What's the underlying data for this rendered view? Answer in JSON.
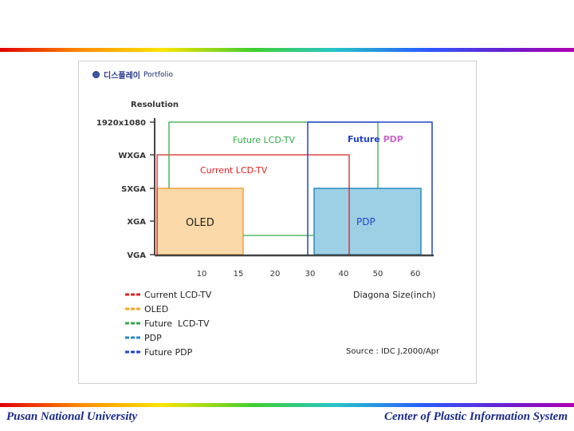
{
  "header": {
    "title_kr": "디스플레이",
    "title_en": "Portfolio"
  },
  "chart_data": {
    "type": "diagram",
    "ylabel": "Resolution",
    "xlabel": "Diagona Size(inch)",
    "y_levels": [
      "1920x1080",
      "WXGA",
      "SXGA",
      "XGA",
      "VGA"
    ],
    "x_ticks": [
      10,
      15,
      20,
      30,
      40,
      50,
      60
    ],
    "regions": [
      {
        "name": "Current LCD-TV",
        "x_range": [
          0,
          40
        ],
        "y_range": [
          "VGA",
          "WXGA"
        ],
        "color": "#dd2222",
        "style": "outline"
      },
      {
        "name": "Future LCD-TV",
        "x_range": [
          15,
          50
        ],
        "y_range": [
          "VGA",
          "1920x1080"
        ],
        "color": "#33aa44",
        "style": "outline"
      },
      {
        "name": "Future PDP",
        "x_range": [
          30,
          60
        ],
        "y_range": [
          "VGA",
          "1920x1080"
        ],
        "color": "#2244cc",
        "style": "outline"
      },
      {
        "name": "OLED",
        "label": "OLED",
        "x_range": [
          0,
          15
        ],
        "y_range": [
          "VGA",
          "SXGA"
        ],
        "color": "#fbd9a8",
        "style": "fill"
      },
      {
        "name": "PDP",
        "label": "PDP",
        "x_range": [
          30,
          60
        ],
        "y_range": [
          "VGA",
          "SXGA"
        ],
        "color": "#9dd0e4",
        "style": "fill"
      }
    ],
    "region_labels": {
      "future_lcd": "Future LCD-TV",
      "future_pdp_a": "Future ",
      "future_pdp_b": "PDP",
      "current_lcd": "Current LCD-TV",
      "oled": "OLED",
      "pdp": "PDP"
    },
    "legend": [
      {
        "label": "Current LCD-TV",
        "color": "#dd2222"
      },
      {
        "label": "OLED",
        "color": "#f5a623"
      },
      {
        "label": "Future  LCD-TV",
        "color": "#33aa44"
      },
      {
        "label": "PDP",
        "color": "#2a8abf"
      },
      {
        "label": "Future PDP",
        "color": "#2244cc"
      }
    ],
    "source": "Source : IDC J,2000/Apr"
  },
  "footer": {
    "left": "Pusan National University",
    "right": "Center of Plastic Information System"
  }
}
